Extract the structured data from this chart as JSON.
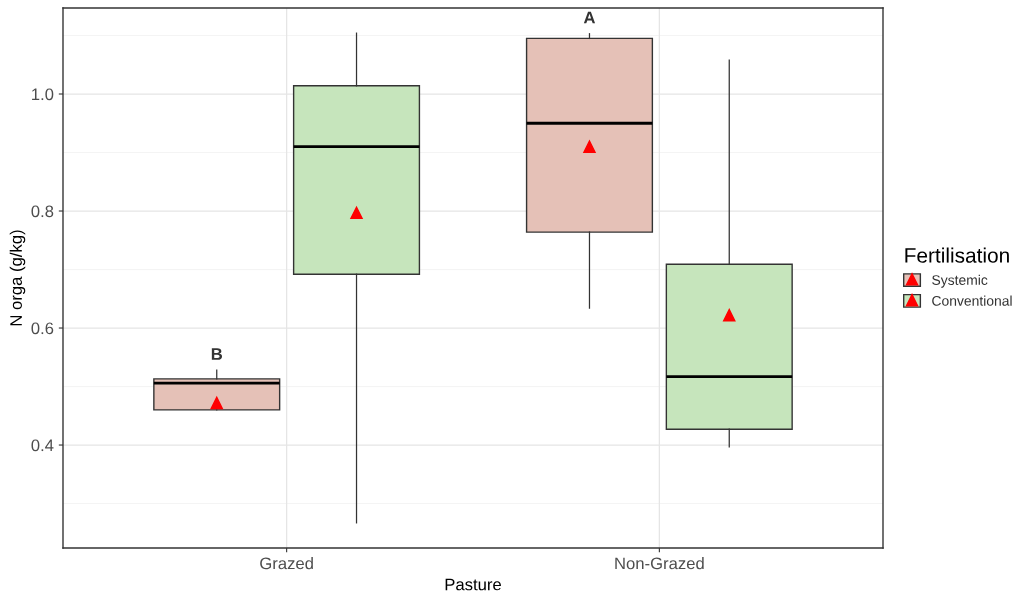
{
  "chart_data": {
    "type": "box",
    "xlabel": "Pasture",
    "ylabel": "N orga (g/kg)",
    "legend_title": "Fertilisation",
    "categories": [
      "Grazed",
      "Non-Grazed"
    ],
    "series": [
      {
        "name": "Systemic",
        "color": "#e5c1b7",
        "boxes": [
          {
            "low": 0.46,
            "q1": 0.46,
            "median": 0.506,
            "q3": 0.513,
            "high": 0.528,
            "mean": 0.472
          },
          {
            "low": 0.634,
            "q1": 0.764,
            "median": 0.95,
            "q3": 1.095,
            "high": 1.103,
            "mean": 0.91
          }
        ]
      },
      {
        "name": "Conventional",
        "color": "#c6e5bc",
        "boxes": [
          {
            "low": 0.267,
            "q1": 0.692,
            "median": 0.91,
            "q3": 1.014,
            "high": 1.104,
            "mean": 0.797
          },
          {
            "low": 0.397,
            "q1": 0.427,
            "median": 0.517,
            "q3": 0.709,
            "high": 1.058,
            "mean": 0.622
          }
        ]
      }
    ],
    "ylim": [
      0.224,
      1.147
    ],
    "yticks": [
      0.4,
      0.6,
      0.8,
      {
        "value": 1.0,
        "label": "1.0"
      }
    ],
    "grid": true,
    "legend": "right",
    "marker": "triangle",
    "annotations": [
      "B",
      "A"
    ]
  }
}
